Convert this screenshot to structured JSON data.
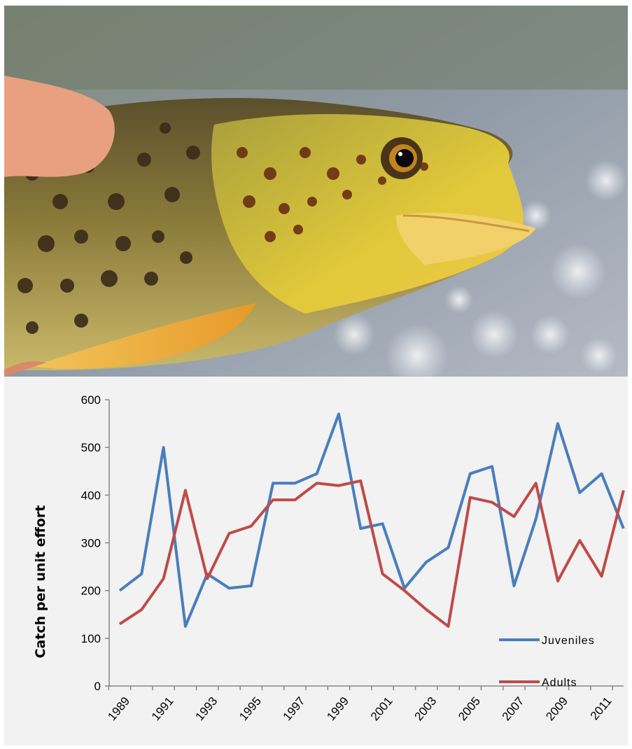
{
  "photo": {
    "subject": "brown-trout-photo"
  },
  "chart_data": {
    "type": "line",
    "xlabel": "",
    "ylabel": "Catch per unit effort",
    "ylim": [
      0,
      600
    ],
    "yticks": [
      0,
      100,
      200,
      300,
      400,
      500,
      600
    ],
    "x": [
      1989,
      1990,
      1991,
      1992,
      1993,
      1994,
      1995,
      1996,
      1997,
      1998,
      1999,
      2000,
      2001,
      2002,
      2003,
      2004,
      2005,
      2006,
      2007,
      2008,
      2009,
      2010,
      2011,
      2012
    ],
    "xtick_labels": [
      "1989",
      "1991",
      "1993",
      "1995",
      "1997",
      "1999",
      "2001",
      "2003",
      "2005",
      "2007",
      "2009",
      "2011"
    ],
    "legend": "bottom-right",
    "grid": false,
    "series": [
      {
        "name": "Juveniles",
        "color": "#4a7ebb",
        "values": [
          200,
          235,
          500,
          125,
          235,
          205,
          210,
          425,
          425,
          445,
          570,
          330,
          340,
          205,
          260,
          290,
          445,
          460,
          210,
          350,
          550,
          405,
          445,
          330
        ]
      },
      {
        "name": "Adults",
        "color": "#be4b48",
        "values": [
          130,
          160,
          225,
          410,
          225,
          320,
          335,
          390,
          390,
          425,
          420,
          430,
          235,
          200,
          160,
          125,
          395,
          385,
          355,
          425,
          220,
          305,
          230,
          410
        ]
      }
    ]
  }
}
